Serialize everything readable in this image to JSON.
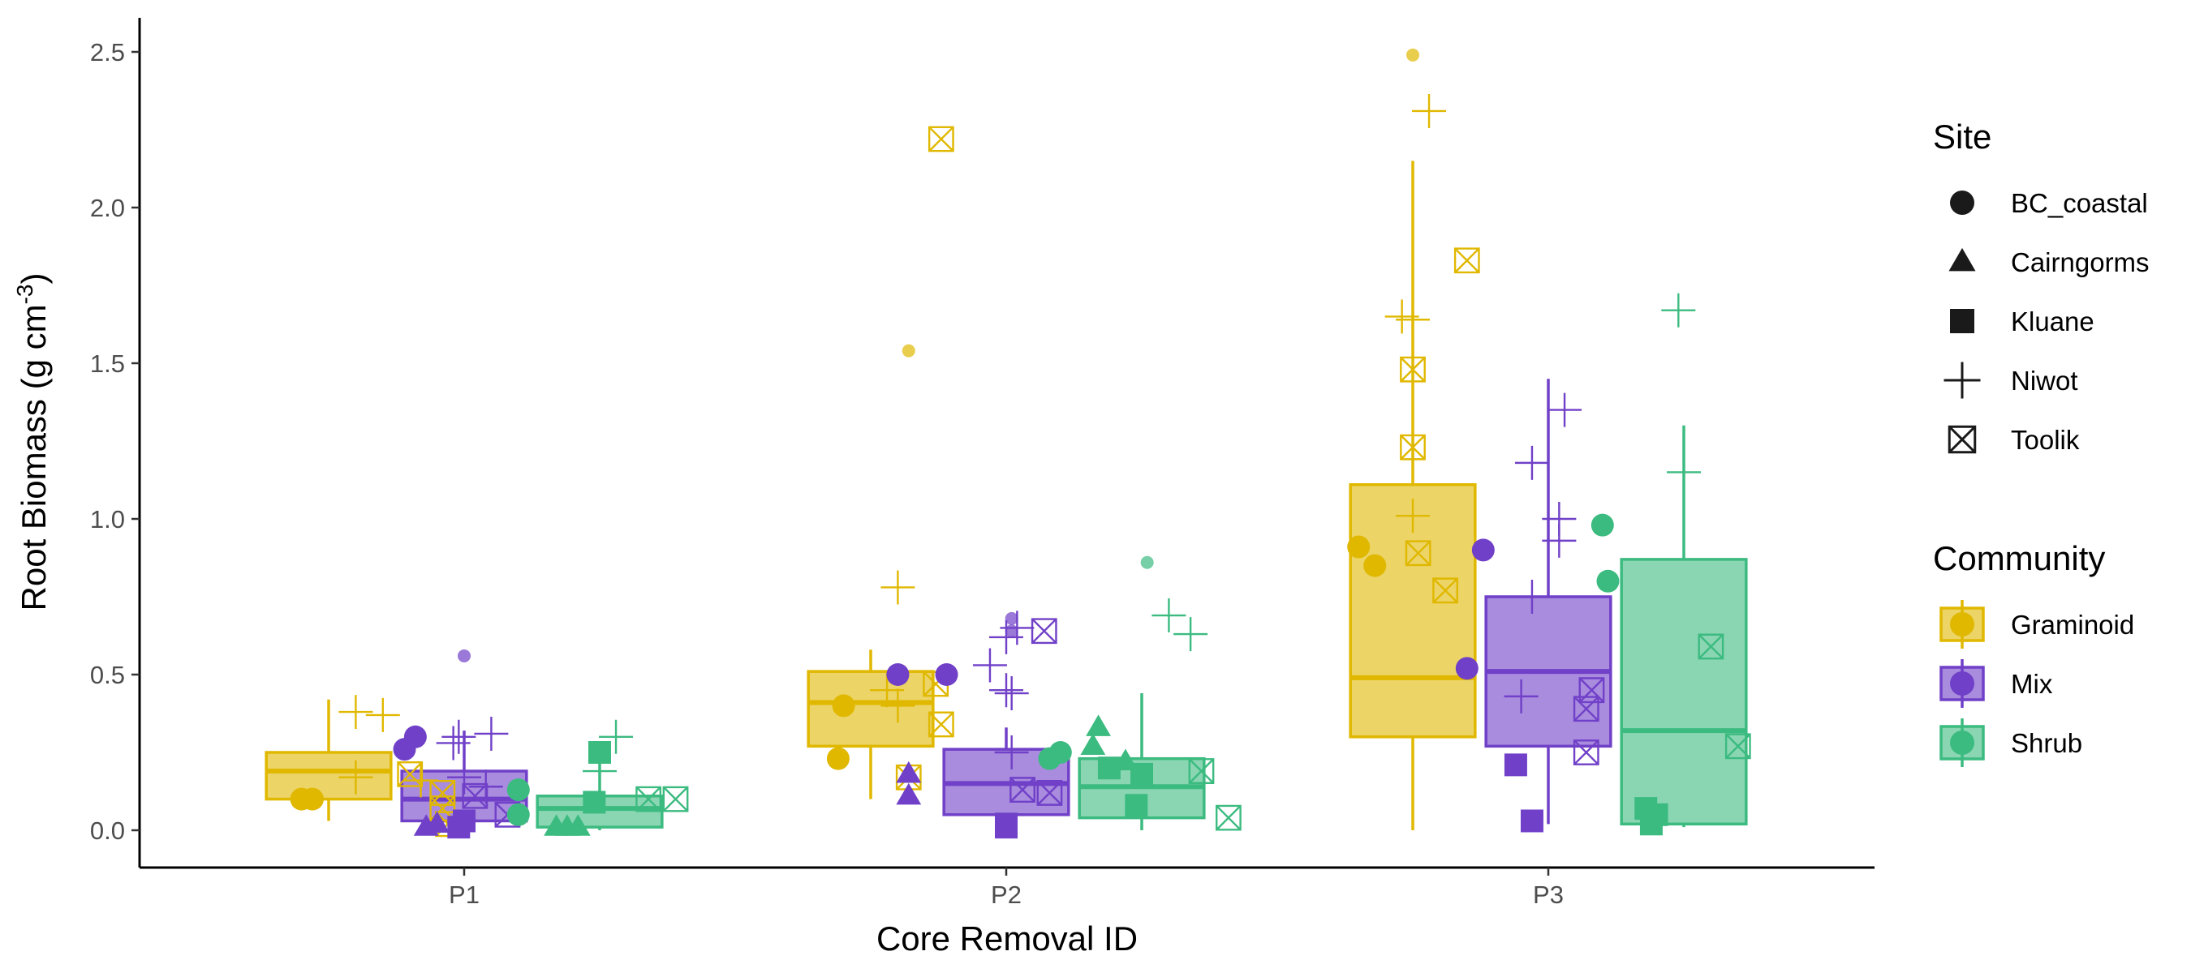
{
  "chart_data": {
    "type": "box",
    "xlabel": "Core Removal ID",
    "ylabel": "Root Biomass (g cm",
    "ylabel_sup": "-3",
    "ylabel_close": ")",
    "categories": [
      "P1",
      "P2",
      "P3"
    ],
    "ylim": [
      -0.12,
      2.6
    ],
    "yticks": [
      0.0,
      0.5,
      1.0,
      1.5,
      2.0,
      2.5
    ],
    "ytick_labels": [
      "0.0",
      "0.5",
      "1.0",
      "1.5",
      "2.0",
      "2.5"
    ],
    "grid": false,
    "legend_position": "right",
    "legends": {
      "site": {
        "title": "Site",
        "items": [
          {
            "label": "BC_coastal",
            "shape": "circle"
          },
          {
            "label": "Cairngorms",
            "shape": "triangle"
          },
          {
            "label": "Kluane",
            "shape": "square"
          },
          {
            "label": "Niwot",
            "shape": "plus"
          },
          {
            "label": "Toolik",
            "shape": "boxx"
          }
        ]
      },
      "community": {
        "title": "Community",
        "items": [
          {
            "label": "Graminoid",
            "color": "#E0B800"
          },
          {
            "label": "Mix",
            "color": "#7040C8"
          },
          {
            "label": "Shrub",
            "color": "#3CBB80"
          }
        ]
      }
    },
    "series": [
      {
        "name": "Graminoid",
        "color": "#E0B800",
        "boxes": [
          {
            "category": "P1",
            "min": 0.03,
            "q1": 0.1,
            "median": 0.19,
            "q3": 0.25,
            "max": 0.42
          },
          {
            "category": "P2",
            "min": 0.1,
            "q1": 0.27,
            "median": 0.41,
            "q3": 0.51,
            "max": 0.58
          },
          {
            "category": "P3",
            "min": 0.0,
            "q1": 0.3,
            "median": 0.49,
            "q3": 1.11,
            "max": 2.15
          }
        ],
        "points": [
          {
            "category": "P1",
            "site": "BC_coastal",
            "y": 0.1,
            "jitter": -0.3
          },
          {
            "category": "P1",
            "site": "BC_coastal",
            "y": 0.1,
            "jitter": -0.28
          },
          {
            "category": "P1",
            "site": "Niwot",
            "y": 0.38,
            "jitter": -0.2
          },
          {
            "category": "P1",
            "site": "Niwot",
            "y": 0.37,
            "jitter": -0.15
          },
          {
            "category": "P1",
            "site": "Niwot",
            "y": 0.17,
            "jitter": -0.2
          },
          {
            "category": "P1",
            "site": "Niwot",
            "y": 0.16,
            "jitter": -0.08
          },
          {
            "category": "P1",
            "site": "Toolik",
            "y": 0.18,
            "jitter": -0.1
          },
          {
            "category": "P1",
            "site": "Toolik",
            "y": 0.12,
            "jitter": -0.04
          },
          {
            "category": "P1",
            "site": "Toolik",
            "y": 0.07,
            "jitter": -0.04
          },
          {
            "category": "P1",
            "site": "Toolik",
            "y": 0.02,
            "jitter": -0.03
          },
          {
            "category": "P2",
            "site": "BC_coastal",
            "y": 0.4,
            "jitter": -0.3
          },
          {
            "category": "P2",
            "site": "BC_coastal",
            "y": 0.23,
            "jitter": -0.31
          },
          {
            "category": "P2",
            "site": "BC_coastal",
            "y": 1.54,
            "jitter": -0.18,
            "small": true
          },
          {
            "category": "P2",
            "site": "Niwot",
            "y": 0.78,
            "jitter": -0.2
          },
          {
            "category": "P2",
            "site": "Niwot",
            "y": 0.45,
            "jitter": -0.22
          },
          {
            "category": "P2",
            "site": "Niwot",
            "y": 0.4,
            "jitter": -0.2
          },
          {
            "category": "P2",
            "site": "Toolik",
            "y": 2.22,
            "jitter": -0.12
          },
          {
            "category": "P2",
            "site": "Toolik",
            "y": 0.34,
            "jitter": -0.12
          },
          {
            "category": "P2",
            "site": "Toolik",
            "y": 0.17,
            "jitter": -0.18
          },
          {
            "category": "P2",
            "site": "Toolik",
            "y": 0.47,
            "jitter": -0.13
          },
          {
            "category": "P3",
            "site": "BC_coastal",
            "y": 2.49,
            "jitter": -0.25,
            "small": true
          },
          {
            "category": "P3",
            "site": "BC_coastal",
            "y": 0.91,
            "jitter": -0.35
          },
          {
            "category": "P3",
            "site": "BC_coastal",
            "y": 0.85,
            "jitter": -0.32
          },
          {
            "category": "P3",
            "site": "Niwot",
            "y": 2.31,
            "jitter": -0.22
          },
          {
            "category": "P3",
            "site": "Niwot",
            "y": 1.65,
            "jitter": -0.27
          },
          {
            "category": "P3",
            "site": "Niwot",
            "y": 1.64,
            "jitter": -0.25
          },
          {
            "category": "P3",
            "site": "Niwot",
            "y": 1.01,
            "jitter": -0.25
          },
          {
            "category": "P3",
            "site": "Toolik",
            "y": 1.83,
            "jitter": -0.15
          },
          {
            "category": "P3",
            "site": "Toolik",
            "y": 1.48,
            "jitter": -0.25
          },
          {
            "category": "P3",
            "site": "Toolik",
            "y": 1.23,
            "jitter": -0.25
          },
          {
            "category": "P3",
            "site": "Toolik",
            "y": 0.89,
            "jitter": -0.24
          },
          {
            "category": "P3",
            "site": "Toolik",
            "y": 0.77,
            "jitter": -0.19
          }
        ]
      },
      {
        "name": "Mix",
        "color": "#7040C8",
        "boxes": [
          {
            "category": "P1",
            "min": 0.0,
            "q1": 0.03,
            "median": 0.1,
            "q3": 0.19,
            "max": 0.32
          },
          {
            "category": "P2",
            "min": 0.0,
            "q1": 0.05,
            "median": 0.15,
            "q3": 0.26,
            "max": 0.33
          },
          {
            "category": "P3",
            "min": 0.02,
            "q1": 0.27,
            "median": 0.51,
            "q3": 0.75,
            "max": 1.45
          }
        ],
        "points": [
          {
            "category": "P1",
            "site": "BC_coastal",
            "y": 0.26,
            "jitter": -0.11
          },
          {
            "category": "P1",
            "site": "BC_coastal",
            "y": 0.3,
            "jitter": -0.09
          },
          {
            "category": "P1",
            "site": "BC_coastal",
            "y": 0.56,
            "jitter": 0.0,
            "small": true
          },
          {
            "category": "P1",
            "site": "Cairngorms",
            "y": 0.01,
            "jitter": -0.07
          },
          {
            "category": "P1",
            "site": "Cairngorms",
            "y": 0.02,
            "jitter": -0.05
          },
          {
            "category": "P1",
            "site": "Kluane",
            "y": 0.01,
            "jitter": -0.01
          },
          {
            "category": "P1",
            "site": "Kluane",
            "y": 0.03,
            "jitter": 0.0
          },
          {
            "category": "P1",
            "site": "Niwot",
            "y": 0.28,
            "jitter": -0.02
          },
          {
            "category": "P1",
            "site": "Niwot",
            "y": 0.3,
            "jitter": -0.01
          },
          {
            "category": "P1",
            "site": "Niwot",
            "y": 0.31,
            "jitter": 0.05
          },
          {
            "category": "P1",
            "site": "Niwot",
            "y": 0.17,
            "jitter": 0.0
          },
          {
            "category": "P1",
            "site": "Niwot",
            "y": 0.14,
            "jitter": 0.04
          },
          {
            "category": "P1",
            "site": "Toolik",
            "y": 0.11,
            "jitter": 0.02
          },
          {
            "category": "P1",
            "site": "Toolik",
            "y": 0.05,
            "jitter": 0.08
          },
          {
            "category": "P2",
            "site": "BC_coastal",
            "y": 0.5,
            "jitter": -0.2
          },
          {
            "category": "P2",
            "site": "BC_coastal",
            "y": 0.5,
            "jitter": -0.11
          },
          {
            "category": "P2",
            "site": "BC_coastal",
            "y": 0.68,
            "jitter": 0.01,
            "small": true
          },
          {
            "category": "P2",
            "site": "BC_coastal",
            "y": 0.64,
            "jitter": 0.01,
            "small": true
          },
          {
            "category": "P2",
            "site": "Cairngorms",
            "y": 0.18,
            "jitter": -0.18
          },
          {
            "category": "P2",
            "site": "Cairngorms",
            "y": 0.11,
            "jitter": -0.18
          },
          {
            "category": "P2",
            "site": "Kluane",
            "y": 0.01,
            "jitter": 0.0
          },
          {
            "category": "P2",
            "site": "Kluane",
            "y": 0.02,
            "jitter": 0.0
          },
          {
            "category": "P2",
            "site": "Niwot",
            "y": 0.53,
            "jitter": -0.03
          },
          {
            "category": "P2",
            "site": "Niwot",
            "y": 0.62,
            "jitter": 0.0
          },
          {
            "category": "P2",
            "site": "Niwot",
            "y": 0.65,
            "jitter": 0.02
          },
          {
            "category": "P2",
            "site": "Niwot",
            "y": 0.45,
            "jitter": 0.0
          },
          {
            "category": "P2",
            "site": "Niwot",
            "y": 0.44,
            "jitter": 0.01
          },
          {
            "category": "P2",
            "site": "Niwot",
            "y": 0.25,
            "jitter": 0.01
          },
          {
            "category": "P2",
            "site": "Toolik",
            "y": 0.64,
            "jitter": 0.07
          },
          {
            "category": "P2",
            "site": "Toolik",
            "y": 0.13,
            "jitter": 0.03
          },
          {
            "category": "P2",
            "site": "Toolik",
            "y": 0.12,
            "jitter": 0.08
          },
          {
            "category": "P3",
            "site": "BC_coastal",
            "y": 0.9,
            "jitter": -0.12
          },
          {
            "category": "P3",
            "site": "BC_coastal",
            "y": 0.52,
            "jitter": -0.15
          },
          {
            "category": "P3",
            "site": "Kluane",
            "y": 0.21,
            "jitter": -0.06
          },
          {
            "category": "P3",
            "site": "Kluane",
            "y": 0.03,
            "jitter": -0.03
          },
          {
            "category": "P3",
            "site": "Niwot",
            "y": 1.18,
            "jitter": -0.03
          },
          {
            "category": "P3",
            "site": "Niwot",
            "y": 1.35,
            "jitter": 0.03
          },
          {
            "category": "P3",
            "site": "Niwot",
            "y": 1.0,
            "jitter": 0.02
          },
          {
            "category": "P3",
            "site": "Niwot",
            "y": 0.93,
            "jitter": 0.02
          },
          {
            "category": "P3",
            "site": "Niwot",
            "y": 0.75,
            "jitter": -0.03
          },
          {
            "category": "P3",
            "site": "Niwot",
            "y": 0.43,
            "jitter": -0.05
          },
          {
            "category": "P3",
            "site": "Toolik",
            "y": 0.45,
            "jitter": 0.08
          },
          {
            "category": "P3",
            "site": "Toolik",
            "y": 0.39,
            "jitter": 0.07
          },
          {
            "category": "P3",
            "site": "Toolik",
            "y": 0.25,
            "jitter": 0.07
          }
        ]
      },
      {
        "name": "Shrub",
        "color": "#3CBB80",
        "boxes": [
          {
            "category": "P1",
            "min": 0.0,
            "q1": 0.01,
            "median": 0.07,
            "q3": 0.11,
            "max": 0.25
          },
          {
            "category": "P2",
            "min": 0.0,
            "q1": 0.04,
            "median": 0.14,
            "q3": 0.23,
            "max": 0.44
          },
          {
            "category": "P3",
            "min": 0.01,
            "q1": 0.02,
            "median": 0.32,
            "q3": 0.87,
            "max": 1.3
          }
        ],
        "points": [
          {
            "category": "P1",
            "site": "BC_coastal",
            "y": 0.13,
            "jitter": 0.1
          },
          {
            "category": "P1",
            "site": "BC_coastal",
            "y": 0.05,
            "jitter": 0.1
          },
          {
            "category": "P1",
            "site": "Cairngorms",
            "y": 0.01,
            "jitter": 0.17
          },
          {
            "category": "P1",
            "site": "Cairngorms",
            "y": 0.01,
            "jitter": 0.19
          },
          {
            "category": "P1",
            "site": "Cairngorms",
            "y": 0.01,
            "jitter": 0.21
          },
          {
            "category": "P1",
            "site": "Kluane",
            "y": 0.25,
            "jitter": 0.25
          },
          {
            "category": "P1",
            "site": "Kluane",
            "y": 0.09,
            "jitter": 0.24
          },
          {
            "category": "P1",
            "site": "Niwot",
            "y": 0.3,
            "jitter": 0.28
          },
          {
            "category": "P1",
            "site": "Niwot",
            "y": 0.19,
            "jitter": 0.25
          },
          {
            "category": "P1",
            "site": "Toolik",
            "y": 0.1,
            "jitter": 0.34
          },
          {
            "category": "P1",
            "site": "Toolik",
            "y": 0.1,
            "jitter": 0.39
          },
          {
            "category": "P2",
            "site": "BC_coastal",
            "y": 0.23,
            "jitter": 0.08
          },
          {
            "category": "P2",
            "site": "BC_coastal",
            "y": 0.25,
            "jitter": 0.1
          },
          {
            "category": "P2",
            "site": "BC_coastal",
            "y": 0.86,
            "jitter": 0.26,
            "small": true
          },
          {
            "category": "P2",
            "site": "Cairngorms",
            "y": 0.33,
            "jitter": 0.17
          },
          {
            "category": "P2",
            "site": "Cairngorms",
            "y": 0.27,
            "jitter": 0.16
          },
          {
            "category": "P2",
            "site": "Cairngorms",
            "y": 0.22,
            "jitter": 0.22
          },
          {
            "category": "P2",
            "site": "Kluane",
            "y": 0.2,
            "jitter": 0.19
          },
          {
            "category": "P2",
            "site": "Kluane",
            "y": 0.18,
            "jitter": 0.25
          },
          {
            "category": "P2",
            "site": "Kluane",
            "y": 0.08,
            "jitter": 0.24
          },
          {
            "category": "P2",
            "site": "Niwot",
            "y": 0.69,
            "jitter": 0.3
          },
          {
            "category": "P2",
            "site": "Niwot",
            "y": 0.63,
            "jitter": 0.34
          },
          {
            "category": "P2",
            "site": "Toolik",
            "y": 0.19,
            "jitter": 0.36
          },
          {
            "category": "P2",
            "site": "Toolik",
            "y": 0.04,
            "jitter": 0.41
          },
          {
            "category": "P3",
            "site": "BC_coastal",
            "y": 0.98,
            "jitter": 0.1
          },
          {
            "category": "P3",
            "site": "BC_coastal",
            "y": 0.8,
            "jitter": 0.11
          },
          {
            "category": "P3",
            "site": "Kluane",
            "y": 0.07,
            "jitter": 0.18
          },
          {
            "category": "P3",
            "site": "Kluane",
            "y": 0.05,
            "jitter": 0.2
          },
          {
            "category": "P3",
            "site": "Kluane",
            "y": 0.02,
            "jitter": 0.19
          },
          {
            "category": "P3",
            "site": "Niwot",
            "y": 1.67,
            "jitter": 0.24
          },
          {
            "category": "P3",
            "site": "Niwot",
            "y": 1.15,
            "jitter": 0.25
          },
          {
            "category": "P3",
            "site": "Toolik",
            "y": 0.59,
            "jitter": 0.3
          },
          {
            "category": "P3",
            "site": "Toolik",
            "y": 0.27,
            "jitter": 0.35
          }
        ]
      }
    ]
  }
}
